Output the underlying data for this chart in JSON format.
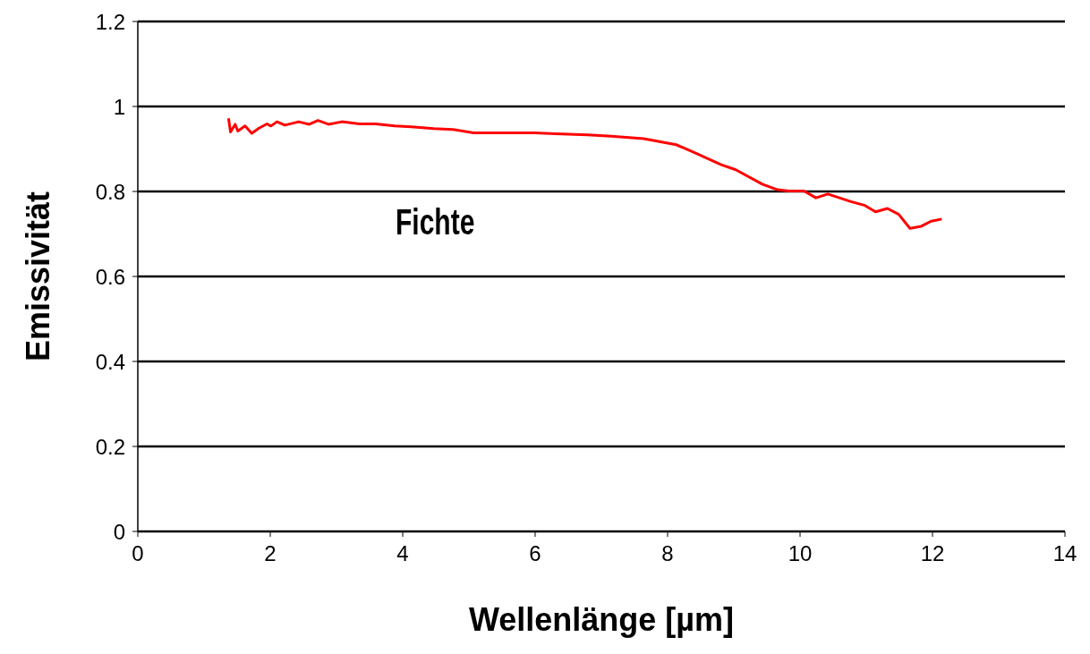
{
  "chart_data": {
    "type": "line",
    "xlabel": "Wellenlänge [µm]",
    "ylabel": "Emissivität",
    "xlim": [
      0,
      14
    ],
    "xticks": [
      0,
      2,
      4,
      6,
      8,
      10,
      12,
      14
    ],
    "ylim": [
      0,
      1.2
    ],
    "yticks": [
      0,
      0.2,
      0.4,
      0.6,
      0.8,
      1,
      1.2
    ],
    "grid": "y",
    "marker": "none",
    "line_style": "solid",
    "series": [
      {
        "name": "Fichte",
        "color": "#ff0000",
        "x": [
          1.37,
          1.4,
          1.47,
          1.51,
          1.62,
          1.72,
          1.83,
          1.95,
          2.01,
          2.1,
          2.22,
          2.43,
          2.59,
          2.72,
          2.88,
          3.08,
          3.35,
          3.59,
          3.88,
          4.13,
          4.47,
          4.76,
          5.07,
          5.99,
          6.3,
          6.79,
          7.15,
          7.64,
          8.13,
          8.4,
          8.81,
          9.03,
          9.43,
          9.66,
          9.83,
          10.06,
          10.24,
          10.42,
          10.77,
          10.98,
          11.14,
          11.32,
          11.49,
          11.66,
          11.83,
          11.98,
          12.14
        ],
        "values": [
          0.972,
          0.94,
          0.958,
          0.942,
          0.954,
          0.937,
          0.949,
          0.959,
          0.954,
          0.964,
          0.956,
          0.964,
          0.958,
          0.967,
          0.958,
          0.964,
          0.959,
          0.959,
          0.954,
          0.952,
          0.948,
          0.946,
          0.938,
          0.938,
          0.936,
          0.933,
          0.93,
          0.924,
          0.91,
          0.892,
          0.863,
          0.851,
          0.817,
          0.804,
          0.801,
          0.801,
          0.785,
          0.794,
          0.776,
          0.767,
          0.752,
          0.76,
          0.746,
          0.713,
          0.718,
          0.73,
          0.735
        ]
      }
    ]
  }
}
